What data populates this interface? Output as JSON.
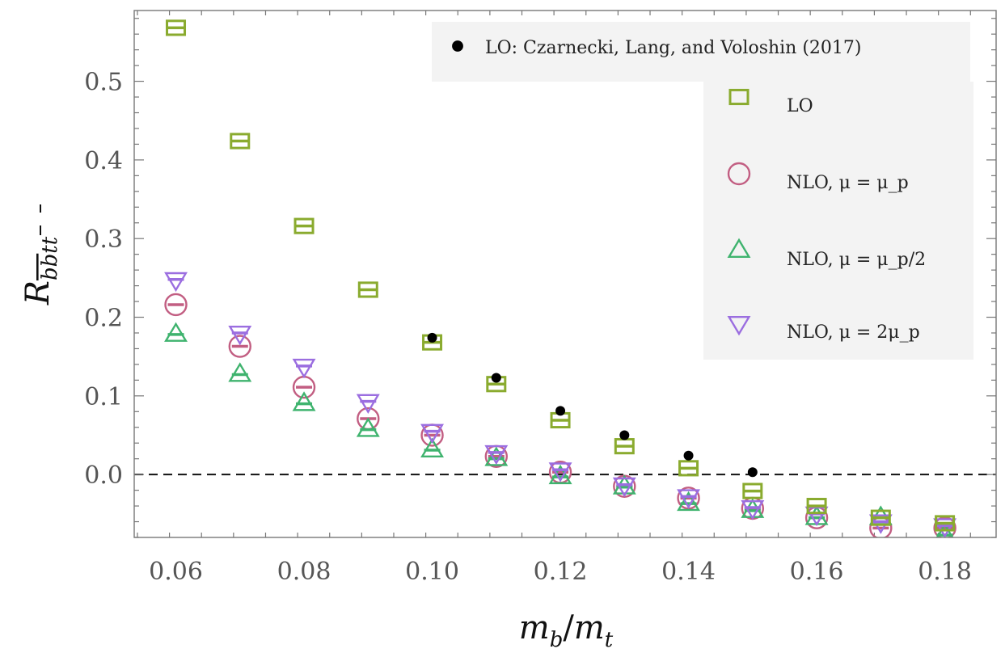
{
  "chart_data": {
    "type": "scatter",
    "xlabel": "m_b/m_t",
    "ylabel": "R_bb̄tt̄",
    "xlim": [
      0.0535,
      0.188
    ],
    "ylim": [
      -0.08,
      0.59
    ],
    "x_ticks": [
      0.06,
      0.08,
      0.1,
      0.12,
      0.14,
      0.16,
      0.18
    ],
    "x_tick_labels": [
      "0.06",
      "0.08",
      "0.10",
      "0.12",
      "0.14",
      "0.16",
      "0.18"
    ],
    "y_ticks": [
      0.0,
      0.1,
      0.2,
      0.3,
      0.4,
      0.5
    ],
    "y_tick_labels": [
      "0.0",
      "0.1",
      "0.2",
      "0.3",
      "0.4",
      "0.5"
    ],
    "grid": false,
    "reference_line": {
      "y": 0.0,
      "style": "dashed"
    },
    "legend_position": "top-right",
    "series": [
      {
        "name": "LO: Czarnecki, Lang, and Voloshin (2017)",
        "marker": "filled-circle",
        "color": "#000000",
        "x": [
          0.1,
          0.11,
          0.12,
          0.13,
          0.14,
          0.15
        ],
        "y": [
          0.174,
          0.123,
          0.081,
          0.05,
          0.024,
          0.003
        ]
      },
      {
        "name": "LO",
        "marker": "open-square",
        "color": "#8aab2f",
        "x": [
          0.06,
          0.07,
          0.08,
          0.09,
          0.1,
          0.11,
          0.12,
          0.13,
          0.14,
          0.15,
          0.16,
          0.17,
          0.18
        ],
        "y": [
          0.568,
          0.424,
          0.316,
          0.235,
          0.168,
          0.115,
          0.069,
          0.036,
          0.008,
          -0.021,
          -0.04,
          -0.055,
          -0.062
        ]
      },
      {
        "name": "NLO, μ = μ_p",
        "marker": "open-circle",
        "color": "#c25e82",
        "x": [
          0.06,
          0.07,
          0.08,
          0.09,
          0.1,
          0.11,
          0.12,
          0.13,
          0.14,
          0.15,
          0.16,
          0.17,
          0.18
        ],
        "y": [
          0.216,
          0.163,
          0.111,
          0.071,
          0.05,
          0.023,
          0.003,
          -0.015,
          -0.03,
          -0.043,
          -0.055,
          -0.068,
          -0.068
        ]
      },
      {
        "name": "NLO, μ = μ_p/2",
        "marker": "open-triangle-up",
        "color": "#3fb36e",
        "x": [
          0.06,
          0.07,
          0.08,
          0.09,
          0.1,
          0.11,
          0.12,
          0.13,
          0.14,
          0.15,
          0.16,
          0.17,
          0.18
        ],
        "y": [
          0.178,
          0.127,
          0.09,
          0.057,
          0.031,
          0.02,
          -0.003,
          -0.016,
          -0.037,
          -0.046,
          -0.055,
          -0.055,
          -0.077
        ]
      },
      {
        "name": "NLO, μ = 2μ_p",
        "marker": "open-triangle-down",
        "color": "#9b6ee0",
        "x": [
          0.06,
          0.07,
          0.08,
          0.09,
          0.1,
          0.11,
          0.12,
          0.13,
          0.14,
          0.15,
          0.16,
          0.17,
          0.18
        ],
        "y": [
          0.248,
          0.18,
          0.138,
          0.093,
          0.055,
          0.028,
          0.006,
          -0.013,
          -0.028,
          -0.042,
          -0.05,
          -0.06,
          -0.065
        ]
      }
    ]
  }
}
